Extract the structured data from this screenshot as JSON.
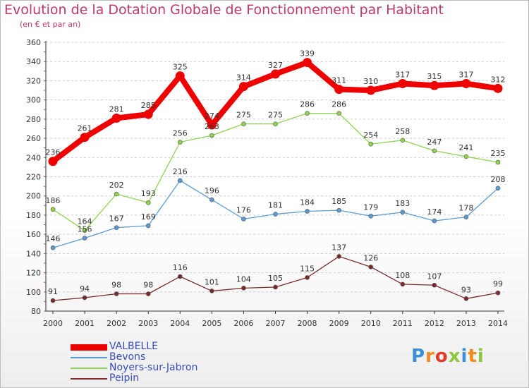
{
  "header": {
    "title": "Evolution de la Dotation Globale de Fonctionnement par Habitant",
    "subtitle": "(en € et par an)"
  },
  "logo": {
    "text": "Proxiti",
    "colors": [
      "#3b8fd4",
      "#f08a1c",
      "#e23a2b",
      "#8cc63f",
      "#3b8fd4",
      "#f08a1c",
      "#8cc63f"
    ]
  },
  "chart_data": {
    "type": "line",
    "x": [
      "2000",
      "2001",
      "2002",
      "2003",
      "2004",
      "2005",
      "2006",
      "2007",
      "2008",
      "2009",
      "2010",
      "2011",
      "2012",
      "2013",
      "2014"
    ],
    "ylim": [
      80,
      360
    ],
    "yticks": [
      80,
      100,
      120,
      140,
      160,
      180,
      200,
      220,
      240,
      260,
      280,
      300,
      320,
      340,
      360
    ],
    "grid": "horizontal",
    "legend_position": "bottom-left",
    "series": [
      {
        "name": "VALBELLE",
        "color": "#ee0000",
        "values": [
          236,
          261,
          281,
          285,
          325,
          274,
          314,
          327,
          339,
          311,
          310,
          317,
          315,
          317,
          312
        ]
      },
      {
        "name": "Bevons",
        "color": "#5b9bd5",
        "values": [
          146,
          156,
          167,
          169,
          216,
          196,
          176,
          181,
          184,
          185,
          179,
          183,
          174,
          178,
          208
        ]
      },
      {
        "name": "Noyers-sur-Jabron",
        "color": "#8fd44e",
        "values": [
          186,
          164,
          202,
          193,
          256,
          263,
          275,
          275,
          286,
          286,
          254,
          258,
          247,
          241,
          235
        ]
      },
      {
        "name": "Peipin",
        "color": "#7a2a2a",
        "values": [
          91,
          94,
          98,
          98,
          116,
          101,
          104,
          105,
          115,
          137,
          126,
          108,
          107,
          93,
          99
        ]
      }
    ]
  }
}
